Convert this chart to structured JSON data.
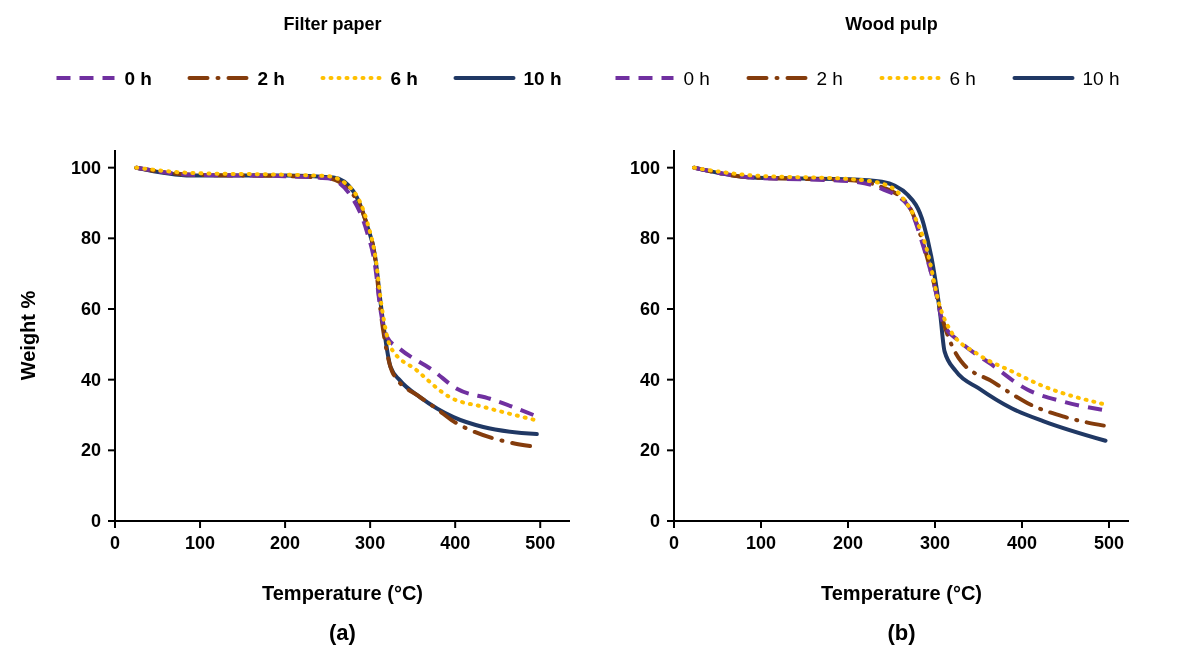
{
  "chart_data": [
    {
      "type": "line",
      "title": "Filter paper",
      "xlabel": "Temperature (°C)",
      "ylabel": "Weight %",
      "annotations": [
        "(a)"
      ],
      "xlim": [
        0,
        535
      ],
      "ylim": [
        0,
        105
      ],
      "xticks": [
        0,
        100,
        200,
        300,
        400,
        500
      ],
      "yticks": [
        0,
        20,
        40,
        60,
        80,
        100
      ],
      "grid": false,
      "legend": "top",
      "series": [
        {
          "name": "0 h",
          "color": "#7030a0",
          "line_style": "dashed",
          "x": [
            25,
            90,
            200,
            250,
            276,
            296,
            306,
            312,
            320,
            335,
            374,
            402,
            441,
            492
          ],
          "values": [
            100,
            98,
            97.6,
            97,
            92.5,
            82,
            72,
            60,
            52,
            48.7,
            42.6,
            37.4,
            34.6,
            30
          ]
        },
        {
          "name": "2 h",
          "color": "#843c0c",
          "line_style": "dashdot",
          "x": [
            25,
            90,
            200,
            250,
            278,
            296,
            306,
            312,
            318,
            327,
            359,
            378,
            398,
            421,
            461,
            488
          ],
          "values": [
            100,
            98,
            97.6,
            97,
            93,
            84,
            74,
            60,
            50,
            41.7,
            35,
            31.8,
            28.2,
            25.4,
            22.4,
            21.2
          ]
        },
        {
          "name": "6 h",
          "color": "#ffc000",
          "line_style": "dotted",
          "x": [
            25,
            90,
            200,
            250,
            280,
            296,
            306,
            314,
            324,
            355,
            394,
            433,
            492
          ],
          "values": [
            100,
            98.5,
            98,
            97.6,
            93.5,
            85,
            75,
            60,
            49.2,
            42.6,
            35,
            32.3,
            28.7
          ]
        },
        {
          "name": "10 h",
          "color": "#203864",
          "line_style": "solid",
          "x": [
            25,
            90,
            200,
            257,
            280,
            296,
            306,
            312,
            316,
            324,
            335,
            359,
            398,
            433,
            496
          ],
          "values": [
            100,
            97.8,
            97.8,
            97.2,
            93.4,
            84,
            74.6,
            62.4,
            54.8,
            43.6,
            39.8,
            35,
            29.4,
            26.6,
            24.6
          ]
        }
      ]
    },
    {
      "type": "line",
      "title": "Wood pulp",
      "xlabel": "Temperature (°C)",
      "annotations": [
        "(b)"
      ],
      "xlim": [
        0,
        523
      ],
      "ylim": [
        0,
        105
      ],
      "xticks": [
        0,
        100,
        200,
        300,
        400,
        500
      ],
      "yticks": [
        0,
        20,
        40,
        60,
        80,
        100
      ],
      "grid": false,
      "legend": "top",
      "series": [
        {
          "name": "0 h",
          "color": "#7030a0",
          "line_style": "dashed",
          "x": [
            23,
            90,
            200,
            239,
            269,
            287,
            298,
            310,
            328,
            365,
            406,
            447,
            492
          ],
          "values": [
            100,
            97.2,
            96.2,
            94,
            89.3,
            77.4,
            68,
            55.6,
            50.9,
            44.3,
            37.2,
            33.8,
            31.5
          ]
        },
        {
          "name": "2 h",
          "color": "#843c0c",
          "line_style": "dashdot",
          "x": [
            23,
            90,
            200,
            239,
            269,
            287,
            298,
            310,
            330,
            367,
            388,
            406,
            447,
            469,
            494
          ],
          "values": [
            100,
            97.2,
            96.5,
            94.5,
            89.5,
            78,
            68,
            56,
            45.2,
            39.3,
            36,
            33.4,
            29.6,
            28.2,
            27
          ]
        },
        {
          "name": "6 h",
          "color": "#ffc000",
          "line_style": "dotted",
          "x": [
            23,
            90,
            200,
            239,
            261,
            291,
            306,
            317,
            350,
            388,
            425,
            492
          ],
          "values": [
            100,
            97.8,
            96.8,
            95.5,
            92,
            76.5,
            60.4,
            54.2,
            47.1,
            42.4,
            38.1,
            33.2
          ]
        },
        {
          "name": "10 h",
          "color": "#203864",
          "line_style": "solid",
          "x": [
            23,
            90,
            202,
            239,
            269,
            287,
            298,
            306,
            311,
            324,
            350,
            388,
            425,
            496
          ],
          "values": [
            100,
            97.2,
            96.7,
            96,
            92.2,
            84,
            71.8,
            58.5,
            48,
            42.4,
            37.6,
            31.9,
            28.2,
            22.7
          ]
        }
      ]
    }
  ]
}
